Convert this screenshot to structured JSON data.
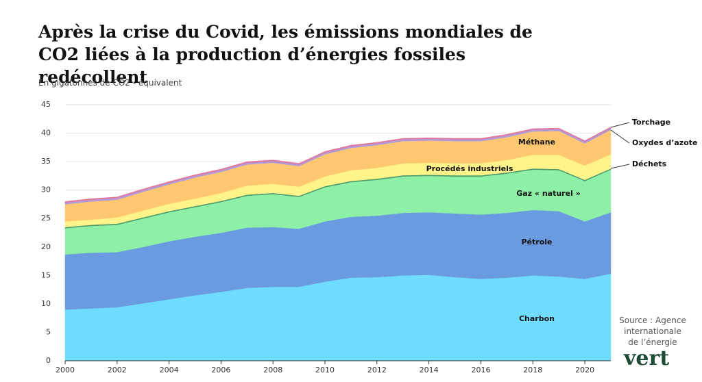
{
  "chart_data": {
    "type": "stacked_area",
    "title": "Après la crise du Covid, les émissions mondiales de CO2 liées à la production d’énergies fossiles redécollent",
    "subtitle": "En gigatonnes de CO2 - équivalent",
    "source": "Source : Agence internationale de l’énergie",
    "logo": "vert",
    "x": [
      2000,
      2001,
      2002,
      2003,
      2004,
      2005,
      2006,
      2007,
      2008,
      2009,
      2010,
      2011,
      2012,
      2013,
      2014,
      2015,
      2016,
      2017,
      2018,
      2019,
      2020,
      2021
    ],
    "xlim": [
      2000,
      2021
    ],
    "xticks": [
      2000,
      2002,
      2004,
      2006,
      2008,
      2010,
      2012,
      2014,
      2016,
      2018,
      2020
    ],
    "ylim": [
      0,
      45
    ],
    "yticks": [
      0,
      5,
      10,
      15,
      20,
      25,
      30,
      35,
      40,
      45
    ],
    "grid": true,
    "series": [
      {
        "name": "Charbon",
        "color": "#6fdcff",
        "values": [
          9.0,
          9.2,
          9.4,
          10.1,
          10.8,
          11.5,
          12.1,
          12.8,
          13.0,
          13.0,
          13.9,
          14.6,
          14.7,
          15.0,
          15.1,
          14.7,
          14.4,
          14.6,
          15.0,
          14.8,
          14.4,
          15.3
        ]
      },
      {
        "name": "Pétrole",
        "color": "#6a9be0",
        "values": [
          9.7,
          9.8,
          9.7,
          9.9,
          10.2,
          10.3,
          10.4,
          10.6,
          10.5,
          10.2,
          10.6,
          10.7,
          10.8,
          11.0,
          11.0,
          11.2,
          11.3,
          11.4,
          11.5,
          11.5,
          10.1,
          10.8
        ]
      },
      {
        "name": "Gaz « naturel »",
        "color": "#8ef0a6",
        "values": [
          4.6,
          4.7,
          4.8,
          5.0,
          5.1,
          5.2,
          5.4,
          5.6,
          5.8,
          5.6,
          6.0,
          6.1,
          6.3,
          6.4,
          6.4,
          6.5,
          6.7,
          6.9,
          7.1,
          7.2,
          7.1,
          7.5
        ]
      },
      {
        "name": "Déchets",
        "color": "#4c9a6a",
        "values": [
          0.2,
          0.2,
          0.2,
          0.2,
          0.2,
          0.2,
          0.2,
          0.2,
          0.2,
          0.2,
          0.2,
          0.2,
          0.2,
          0.2,
          0.2,
          0.2,
          0.2,
          0.2,
          0.2,
          0.2,
          0.2,
          0.2
        ]
      },
      {
        "name": "Procédés industriels",
        "color": "#fff48a",
        "values": [
          1.0,
          0.9,
          1.1,
          1.2,
          1.3,
          1.3,
          1.4,
          1.6,
          1.6,
          1.6,
          1.7,
          1.9,
          1.9,
          2.1,
          2.1,
          2.1,
          2.1,
          2.2,
          2.4,
          2.5,
          2.5,
          2.5
        ]
      },
      {
        "name": "Méthane",
        "color": "#ffc870",
        "values": [
          3.0,
          3.2,
          3.1,
          3.3,
          3.4,
          3.7,
          3.7,
          3.7,
          3.7,
          3.6,
          3.9,
          3.9,
          4.0,
          3.9,
          3.9,
          3.9,
          3.9,
          4.0,
          4.1,
          4.2,
          3.9,
          4.3
        ]
      },
      {
        "name": "Oxydes d’azote",
        "color": "#b09bdc",
        "values": [
          0.3,
          0.3,
          0.3,
          0.3,
          0.3,
          0.3,
          0.3,
          0.3,
          0.3,
          0.3,
          0.3,
          0.3,
          0.3,
          0.3,
          0.3,
          0.3,
          0.3,
          0.3,
          0.3,
          0.3,
          0.3,
          0.3
        ]
      },
      {
        "name": "Torchage",
        "color": "#e07aa0",
        "values": [
          0.2,
          0.2,
          0.2,
          0.2,
          0.2,
          0.2,
          0.2,
          0.2,
          0.2,
          0.2,
          0.2,
          0.2,
          0.2,
          0.2,
          0.2,
          0.2,
          0.2,
          0.2,
          0.2,
          0.2,
          0.2,
          0.2
        ]
      }
    ]
  }
}
